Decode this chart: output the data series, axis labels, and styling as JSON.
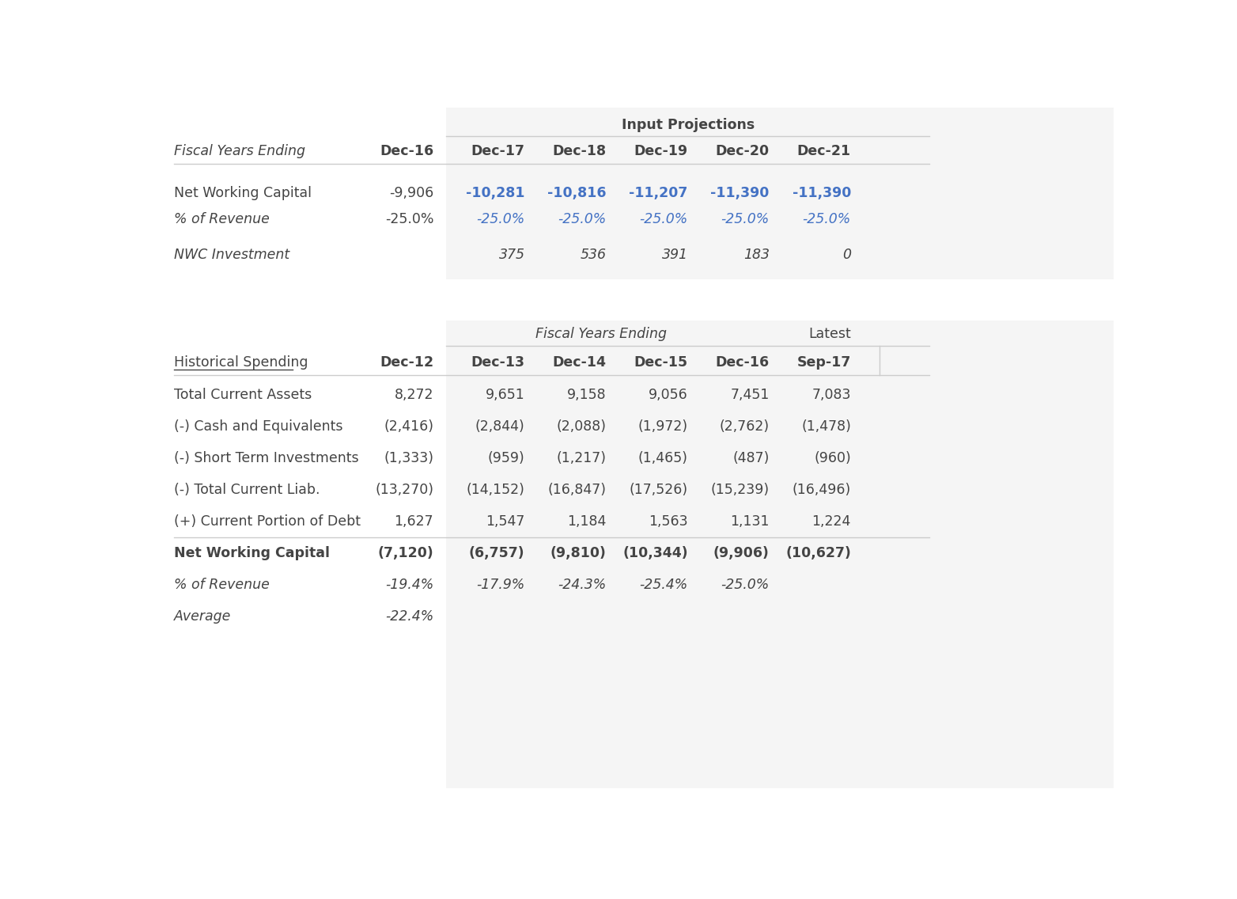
{
  "bg_color": "#ffffff",
  "text_color": "#444444",
  "blue_color": "#4472C4",
  "gray_bg": "#f5f5f5",
  "line_color": "#cccccc",
  "s1_columns": [
    "Dec-16",
    "Dec-17",
    "Dec-18",
    "Dec-19",
    "Dec-20",
    "Dec-21"
  ],
  "s1_rows": [
    {
      "label": "Net Working Capital",
      "label_italic": false,
      "values": [
        "-9,906",
        "-10,281",
        "-10,816",
        "-11,207",
        "-11,390",
        "-11,390"
      ],
      "val_colors": [
        "dark",
        "blue",
        "blue",
        "blue",
        "blue",
        "blue"
      ],
      "val_bold": [
        false,
        true,
        true,
        true,
        true,
        true
      ],
      "val_italic": [
        false,
        false,
        false,
        false,
        false,
        false
      ]
    },
    {
      "label": "% of Revenue",
      "label_italic": true,
      "values": [
        "-25.0%",
        "-25.0%",
        "-25.0%",
        "-25.0%",
        "-25.0%",
        "-25.0%"
      ],
      "val_colors": [
        "dark",
        "blue",
        "blue",
        "blue",
        "blue",
        "blue"
      ],
      "val_bold": [
        false,
        false,
        false,
        false,
        false,
        false
      ],
      "val_italic": [
        false,
        true,
        true,
        true,
        true,
        true
      ]
    },
    {
      "label": "NWC Investment",
      "label_italic": true,
      "values": [
        "",
        "375",
        "536",
        "391",
        "183",
        "0"
      ],
      "val_colors": [
        "dark",
        "dark",
        "dark",
        "dark",
        "dark",
        "dark"
      ],
      "val_bold": [
        false,
        false,
        false,
        false,
        false,
        false
      ],
      "val_italic": [
        false,
        true,
        true,
        true,
        true,
        true
      ]
    }
  ],
  "s2_columns": [
    "Dec-12",
    "Dec-13",
    "Dec-14",
    "Dec-15",
    "Dec-16",
    "Sep-17"
  ],
  "s2_rows": [
    {
      "label": "Total Current Assets",
      "label_italic": false,
      "label_bold": false,
      "values": [
        "8,272",
        "9,651",
        "9,158",
        "9,056",
        "7,451",
        "7,083"
      ],
      "val_bold": false
    },
    {
      "label": "(-) Cash and Equivalents",
      "label_italic": false,
      "label_bold": false,
      "values": [
        "(2,416)",
        "(2,844)",
        "(2,088)",
        "(1,972)",
        "(2,762)",
        "(1,478)"
      ],
      "val_bold": false
    },
    {
      "label": "(-) Short Term Investments",
      "label_italic": false,
      "label_bold": false,
      "values": [
        "(1,333)",
        "(959)",
        "(1,217)",
        "(1,465)",
        "(487)",
        "(960)"
      ],
      "val_bold": false
    },
    {
      "label": "(-) Total Current Liab.",
      "label_italic": false,
      "label_bold": false,
      "values": [
        "(13,270)",
        "(14,152)",
        "(16,847)",
        "(17,526)",
        "(15,239)",
        "(16,496)"
      ],
      "val_bold": false
    },
    {
      "label": "(+) Current Portion of Debt",
      "label_italic": false,
      "label_bold": false,
      "values": [
        "1,627",
        "1,547",
        "1,184",
        "1,563",
        "1,131",
        "1,224"
      ],
      "val_bold": false
    },
    {
      "label": "Net Working Capital",
      "label_italic": false,
      "label_bold": true,
      "values": [
        "(7,120)",
        "(6,757)",
        "(9,810)",
        "(10,344)",
        "(9,906)",
        "(10,627)"
      ],
      "val_bold": true
    },
    {
      "label": "% of Revenue",
      "label_italic": true,
      "label_bold": false,
      "values": [
        "-19.4%",
        "-17.9%",
        "-24.3%",
        "-25.4%",
        "-25.0%",
        ""
      ],
      "val_bold": false
    },
    {
      "label": "Average",
      "label_italic": true,
      "label_bold": false,
      "values": [
        "-22.4%",
        "",
        "",
        "",
        "",
        ""
      ],
      "val_bold": false
    }
  ]
}
